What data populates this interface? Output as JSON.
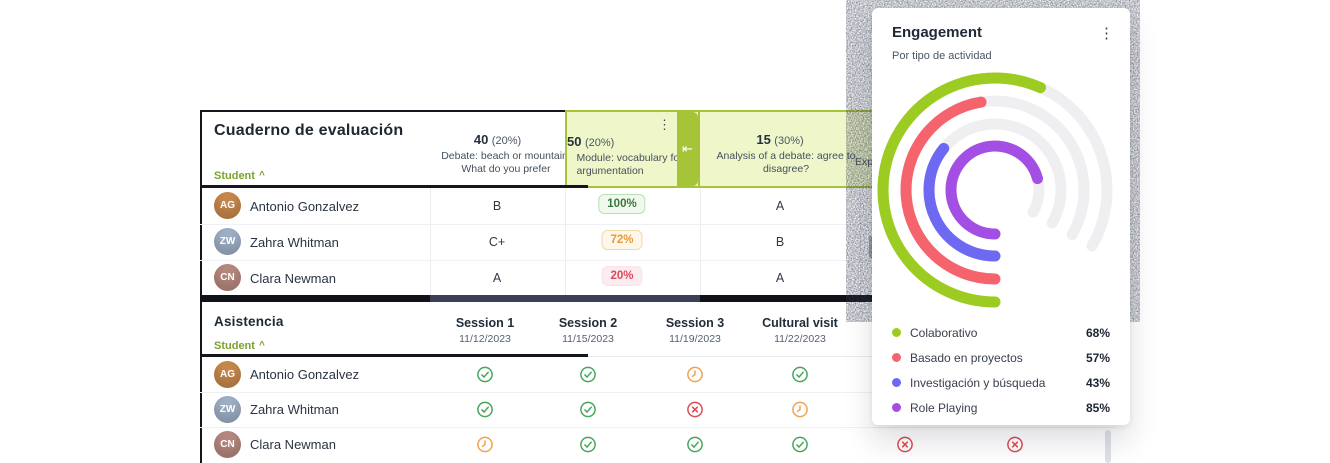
{
  "theme": {
    "accent_green": "#7ba32c",
    "highlight_bg": "#eff7ca",
    "highlight_border": "#a6c438",
    "divider_dark": "#101119",
    "success": "#45a65a",
    "warning": "#eda24f",
    "danger": "#de4b50"
  },
  "gradebook": {
    "title": "Cuaderno de evaluación",
    "sort_label": "Student",
    "sort_caret": "^",
    "kebab_icon": "⋮",
    "collapse_icon": "⇤",
    "columns": [
      {
        "points": "40",
        "weight": "(20%)",
        "subtitle": "Debate: beach or mountain. What do you prefer"
      },
      {
        "points": "50",
        "weight": "(20%)",
        "subtitle": "Module: vocabulary for argumentation"
      },
      {
        "points": "15",
        "weight": "(30%)",
        "subtitle": "Analysis of a debate: agree to disagree?"
      },
      {
        "points": "",
        "weight": "",
        "subtitle": "Exp"
      }
    ],
    "rows": [
      {
        "name": "Antonio Gonzalvez",
        "initials": "AG",
        "avatar_color": "#c9894d",
        "debate_grade": "B",
        "module_score": "100%",
        "module_level": "success",
        "analysis_grade": "A"
      },
      {
        "name": "Zahra Whitman",
        "initials": "ZW",
        "avatar_color": "#9fb0c7",
        "debate_grade": "C+",
        "module_score": "72%",
        "module_level": "warning",
        "analysis_grade": "B"
      },
      {
        "name": "Clara Newman",
        "initials": "CN",
        "avatar_color": "#b8897f",
        "debate_grade": "A",
        "module_score": "20%",
        "module_level": "danger",
        "analysis_grade": "A"
      }
    ]
  },
  "attendance": {
    "title": "Asistencia",
    "sort_label": "Student",
    "sort_caret": "^",
    "sessions": [
      {
        "label": "Session 1",
        "date": "11/12/2023"
      },
      {
        "label": "Session 2",
        "date": "11/15/2023"
      },
      {
        "label": "Session 3",
        "date": "11/19/2023"
      },
      {
        "label": "Cultural visit",
        "date": "11/22/2023"
      }
    ],
    "rows": [
      {
        "name": "Antonio Gonzalvez",
        "initials": "AG",
        "avatar_color": "#c9894d",
        "marks": [
          "present",
          "present",
          "late",
          "present",
          null,
          null
        ]
      },
      {
        "name": "Zahra Whitman",
        "initials": "ZW",
        "avatar_color": "#9fb0c7",
        "marks": [
          "present",
          "present",
          "absent",
          "late",
          null,
          null
        ]
      },
      {
        "name": "Clara Newman",
        "initials": "CN",
        "avatar_color": "#b8897f",
        "marks": [
          "late",
          "present",
          "present",
          "present",
          "absent",
          "absent"
        ]
      }
    ]
  },
  "engagement": {
    "title": "Engagement",
    "subtitle": "Por tipo de actividad",
    "kebab_icon": "⋮",
    "chart_data": {
      "type": "radial-progress",
      "categories": [
        "Colaborativo",
        "Basado en proyectos",
        "Investigación y búsqueda",
        "Role Playing"
      ],
      "values": [
        68,
        57,
        43,
        85
      ],
      "unit": "%",
      "colors": [
        "#9ccc21",
        "#f5646d",
        "#6d69f3",
        "#a44fe3"
      ],
      "track_color": "#efeff2",
      "max_sweep_deg": 300,
      "legend_position": "bottom"
    }
  }
}
